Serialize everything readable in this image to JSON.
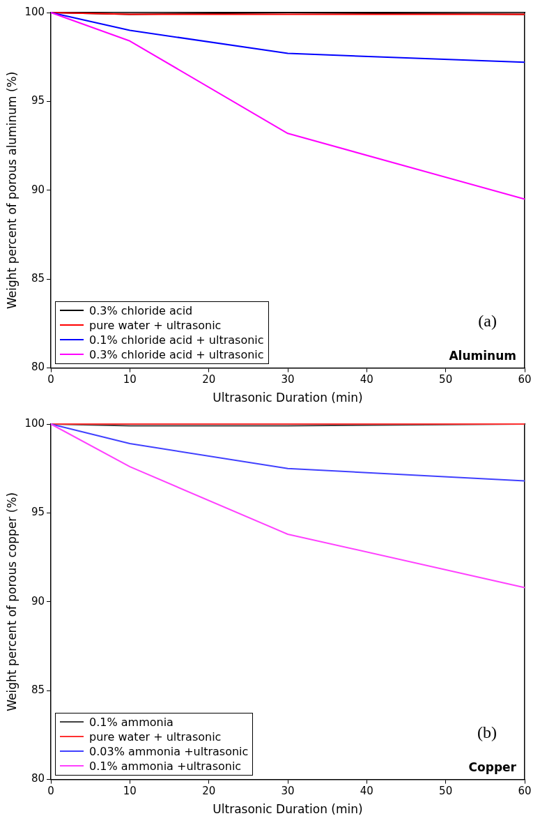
{
  "chart_data": [
    {
      "type": "line",
      "xlabel": "Ultrasonic Duration (min)",
      "ylabel": "Weight percent of porous aluminum (%)",
      "x": [
        0,
        10,
        30,
        60
      ],
      "xlim": [
        0,
        60
      ],
      "xticks": [
        0,
        10,
        20,
        30,
        40,
        50,
        60
      ],
      "ylim": [
        80,
        100
      ],
      "yticks": [
        80,
        85,
        90,
        95,
        100
      ],
      "legend": "bottom left",
      "grid": false,
      "marker": "none",
      "series": [
        {
          "name": "0.3% chloride acid",
          "color": "#000000",
          "values": [
            100,
            99.9,
            100,
            99.9
          ]
        },
        {
          "name": "pure water + ultrasonic",
          "color": "#ff0000",
          "values": [
            100,
            99.9,
            99.9,
            99.9
          ]
        },
        {
          "name": "0.1% chloride acid + ultrasonic",
          "color": "#0000ff",
          "values": [
            100,
            99.0,
            97.7,
            97.2
          ]
        },
        {
          "name": "0.3% chloride acid + ultrasonic",
          "color": "#ff00ff",
          "values": [
            100,
            98.4,
            93.2,
            89.5
          ]
        }
      ],
      "annotations": [
        "(a)",
        "Aluminum"
      ]
    },
    {
      "type": "line",
      "xlabel": "Ultrasonic Duration (min)",
      "ylabel": "Weight percent of porous copper (%)",
      "x": [
        0,
        10,
        30,
        60
      ],
      "xlim": [
        0,
        60
      ],
      "xticks": [
        0,
        10,
        20,
        30,
        40,
        50,
        60
      ],
      "ylim": [
        80,
        100
      ],
      "yticks": [
        80,
        85,
        90,
        95,
        100
      ],
      "legend": "bottom left",
      "grid": false,
      "marker": "none",
      "series": [
        {
          "name": "0.1% ammonia",
          "color": "#404040",
          "values": [
            100,
            99.9,
            99.9,
            100
          ]
        },
        {
          "name": "pure water + ultrasonic",
          "color": "#ff3030",
          "values": [
            100,
            100,
            100,
            100
          ]
        },
        {
          "name": "0.03% ammonia +ultrasonic",
          "color": "#4040ff",
          "values": [
            100,
            98.9,
            97.5,
            96.8
          ]
        },
        {
          "name": "0.1% ammonia +ultrasonic",
          "color": "#ff40ff",
          "values": [
            100,
            97.6,
            93.8,
            90.8
          ]
        }
      ],
      "annotations": [
        "(b)",
        "Copper"
      ]
    }
  ]
}
